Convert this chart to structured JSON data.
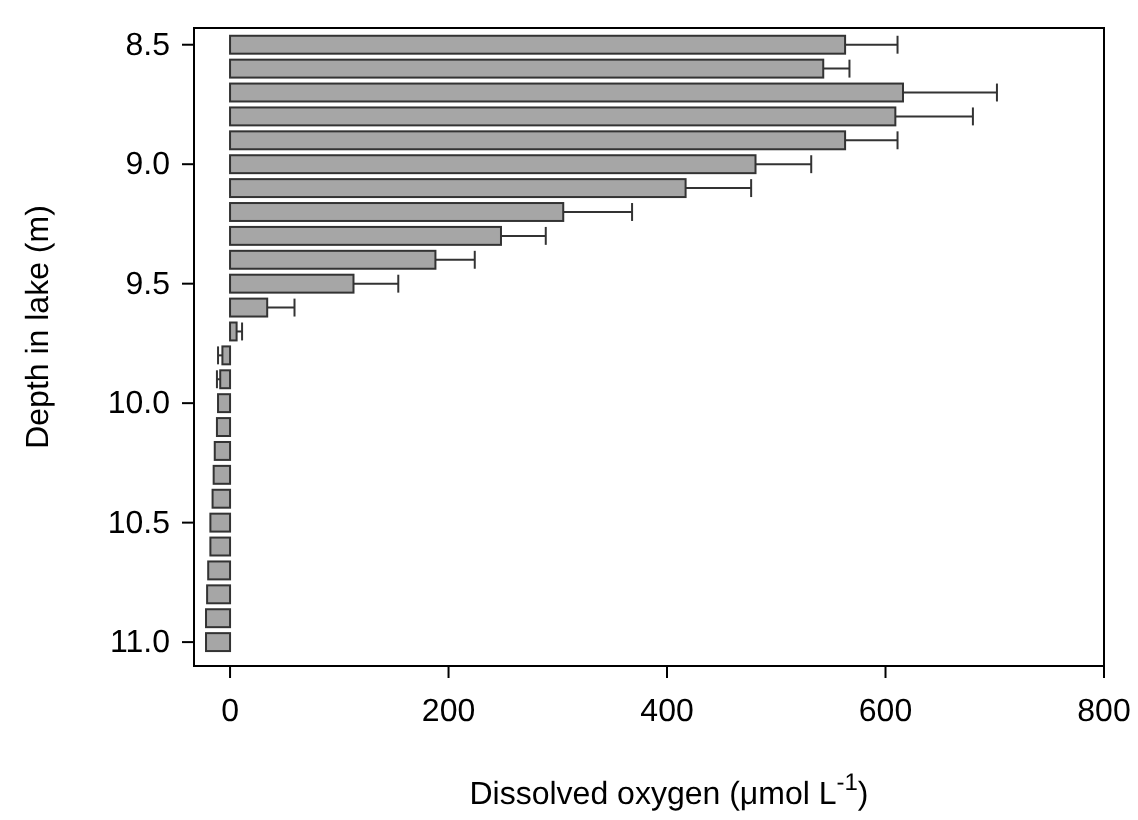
{
  "chart_data": {
    "type": "bar",
    "orientation": "horizontal",
    "xlabel": "Dissolved oxygen (μmol L$^{-1}$)",
    "ylabel": "Depth in lake (m)",
    "x": [
      8.5,
      8.6,
      8.7,
      8.8,
      8.9,
      9.0,
      9.1,
      9.2,
      9.3,
      9.4,
      9.5,
      9.6,
      9.7,
      9.8,
      9.9,
      10.0,
      10.1,
      10.2,
      10.3,
      10.4,
      10.5,
      10.6,
      10.7,
      10.8,
      10.9,
      11.0
    ],
    "values": [
      563,
      543,
      616,
      609,
      563,
      481,
      417,
      305,
      248,
      188,
      113,
      34,
      6,
      -7,
      -9,
      -11,
      -12,
      -14,
      -15,
      -16,
      -18,
      -18,
      -20,
      -21,
      -22,
      -22
    ],
    "errors": [
      48,
      24,
      86,
      71,
      48,
      51,
      60,
      63,
      41,
      36,
      41,
      25,
      5,
      4,
      3,
      null,
      null,
      null,
      null,
      null,
      null,
      null,
      null,
      null,
      null,
      null
    ],
    "color": "#a6a6a6",
    "xlim": [
      -33,
      800
    ],
    "xticks": [
      0,
      200,
      400,
      600,
      800
    ],
    "ylim": [
      11.1,
      8.43
    ],
    "yticks": [
      {
        "value": 8.5,
        "label": "8.5"
      },
      {
        "value": 9,
        "label": "9.0"
      },
      {
        "value": 9.5,
        "label": "9.5"
      },
      {
        "value": 10,
        "label": "10.0"
      },
      {
        "value": 10.5,
        "label": "10.5"
      },
      {
        "value": 11,
        "label": "11.0"
      }
    ],
    "grid": false
  }
}
